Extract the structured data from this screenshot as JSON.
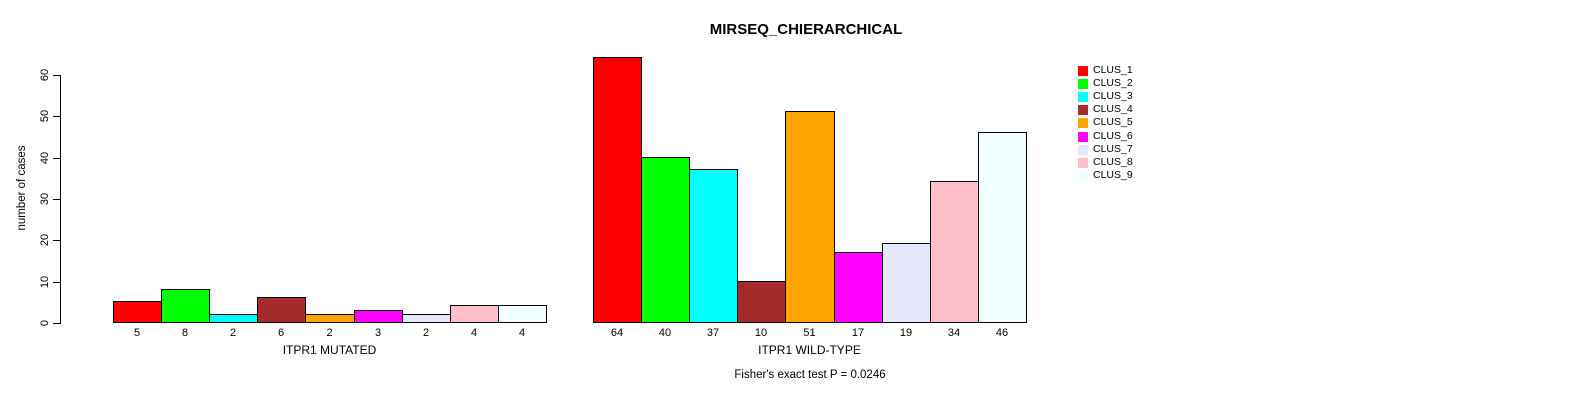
{
  "chart_data": {
    "type": "bar",
    "title": "MIRSEQ_CHIERARCHICAL",
    "ylabel": "number of cases",
    "xlabel": "",
    "ylim": [
      0,
      60
    ],
    "yticks": [
      0,
      10,
      20,
      30,
      40,
      50,
      60
    ],
    "grid": false,
    "legend_position": "right",
    "categories": [
      "ITPR1 MUTATED",
      "ITPR1 WILD-TYPE"
    ],
    "series": [
      {
        "name": "CLUS_1",
        "color": "#FF0000",
        "values": [
          5,
          64
        ]
      },
      {
        "name": "CLUS_2",
        "color": "#00FF00",
        "values": [
          8,
          40
        ]
      },
      {
        "name": "CLUS_3",
        "color": "#00FFFF",
        "values": [
          2,
          37
        ]
      },
      {
        "name": "CLUS_4",
        "color": "#A52A2A",
        "values": [
          6,
          10
        ]
      },
      {
        "name": "CLUS_5",
        "color": "#FFA500",
        "values": [
          2,
          51
        ]
      },
      {
        "name": "CLUS_6",
        "color": "#FF00FF",
        "values": [
          3,
          17
        ]
      },
      {
        "name": "CLUS_7",
        "color": "#E6E6FA",
        "values": [
          2,
          19
        ]
      },
      {
        "name": "CLUS_8",
        "color": "#FFC0CB",
        "values": [
          4,
          34
        ]
      },
      {
        "name": "CLUS_9",
        "color": "#F0FFFF",
        "values": [
          4,
          46
        ]
      }
    ],
    "annotation": "Fisher's exact test P = 0.0246"
  }
}
